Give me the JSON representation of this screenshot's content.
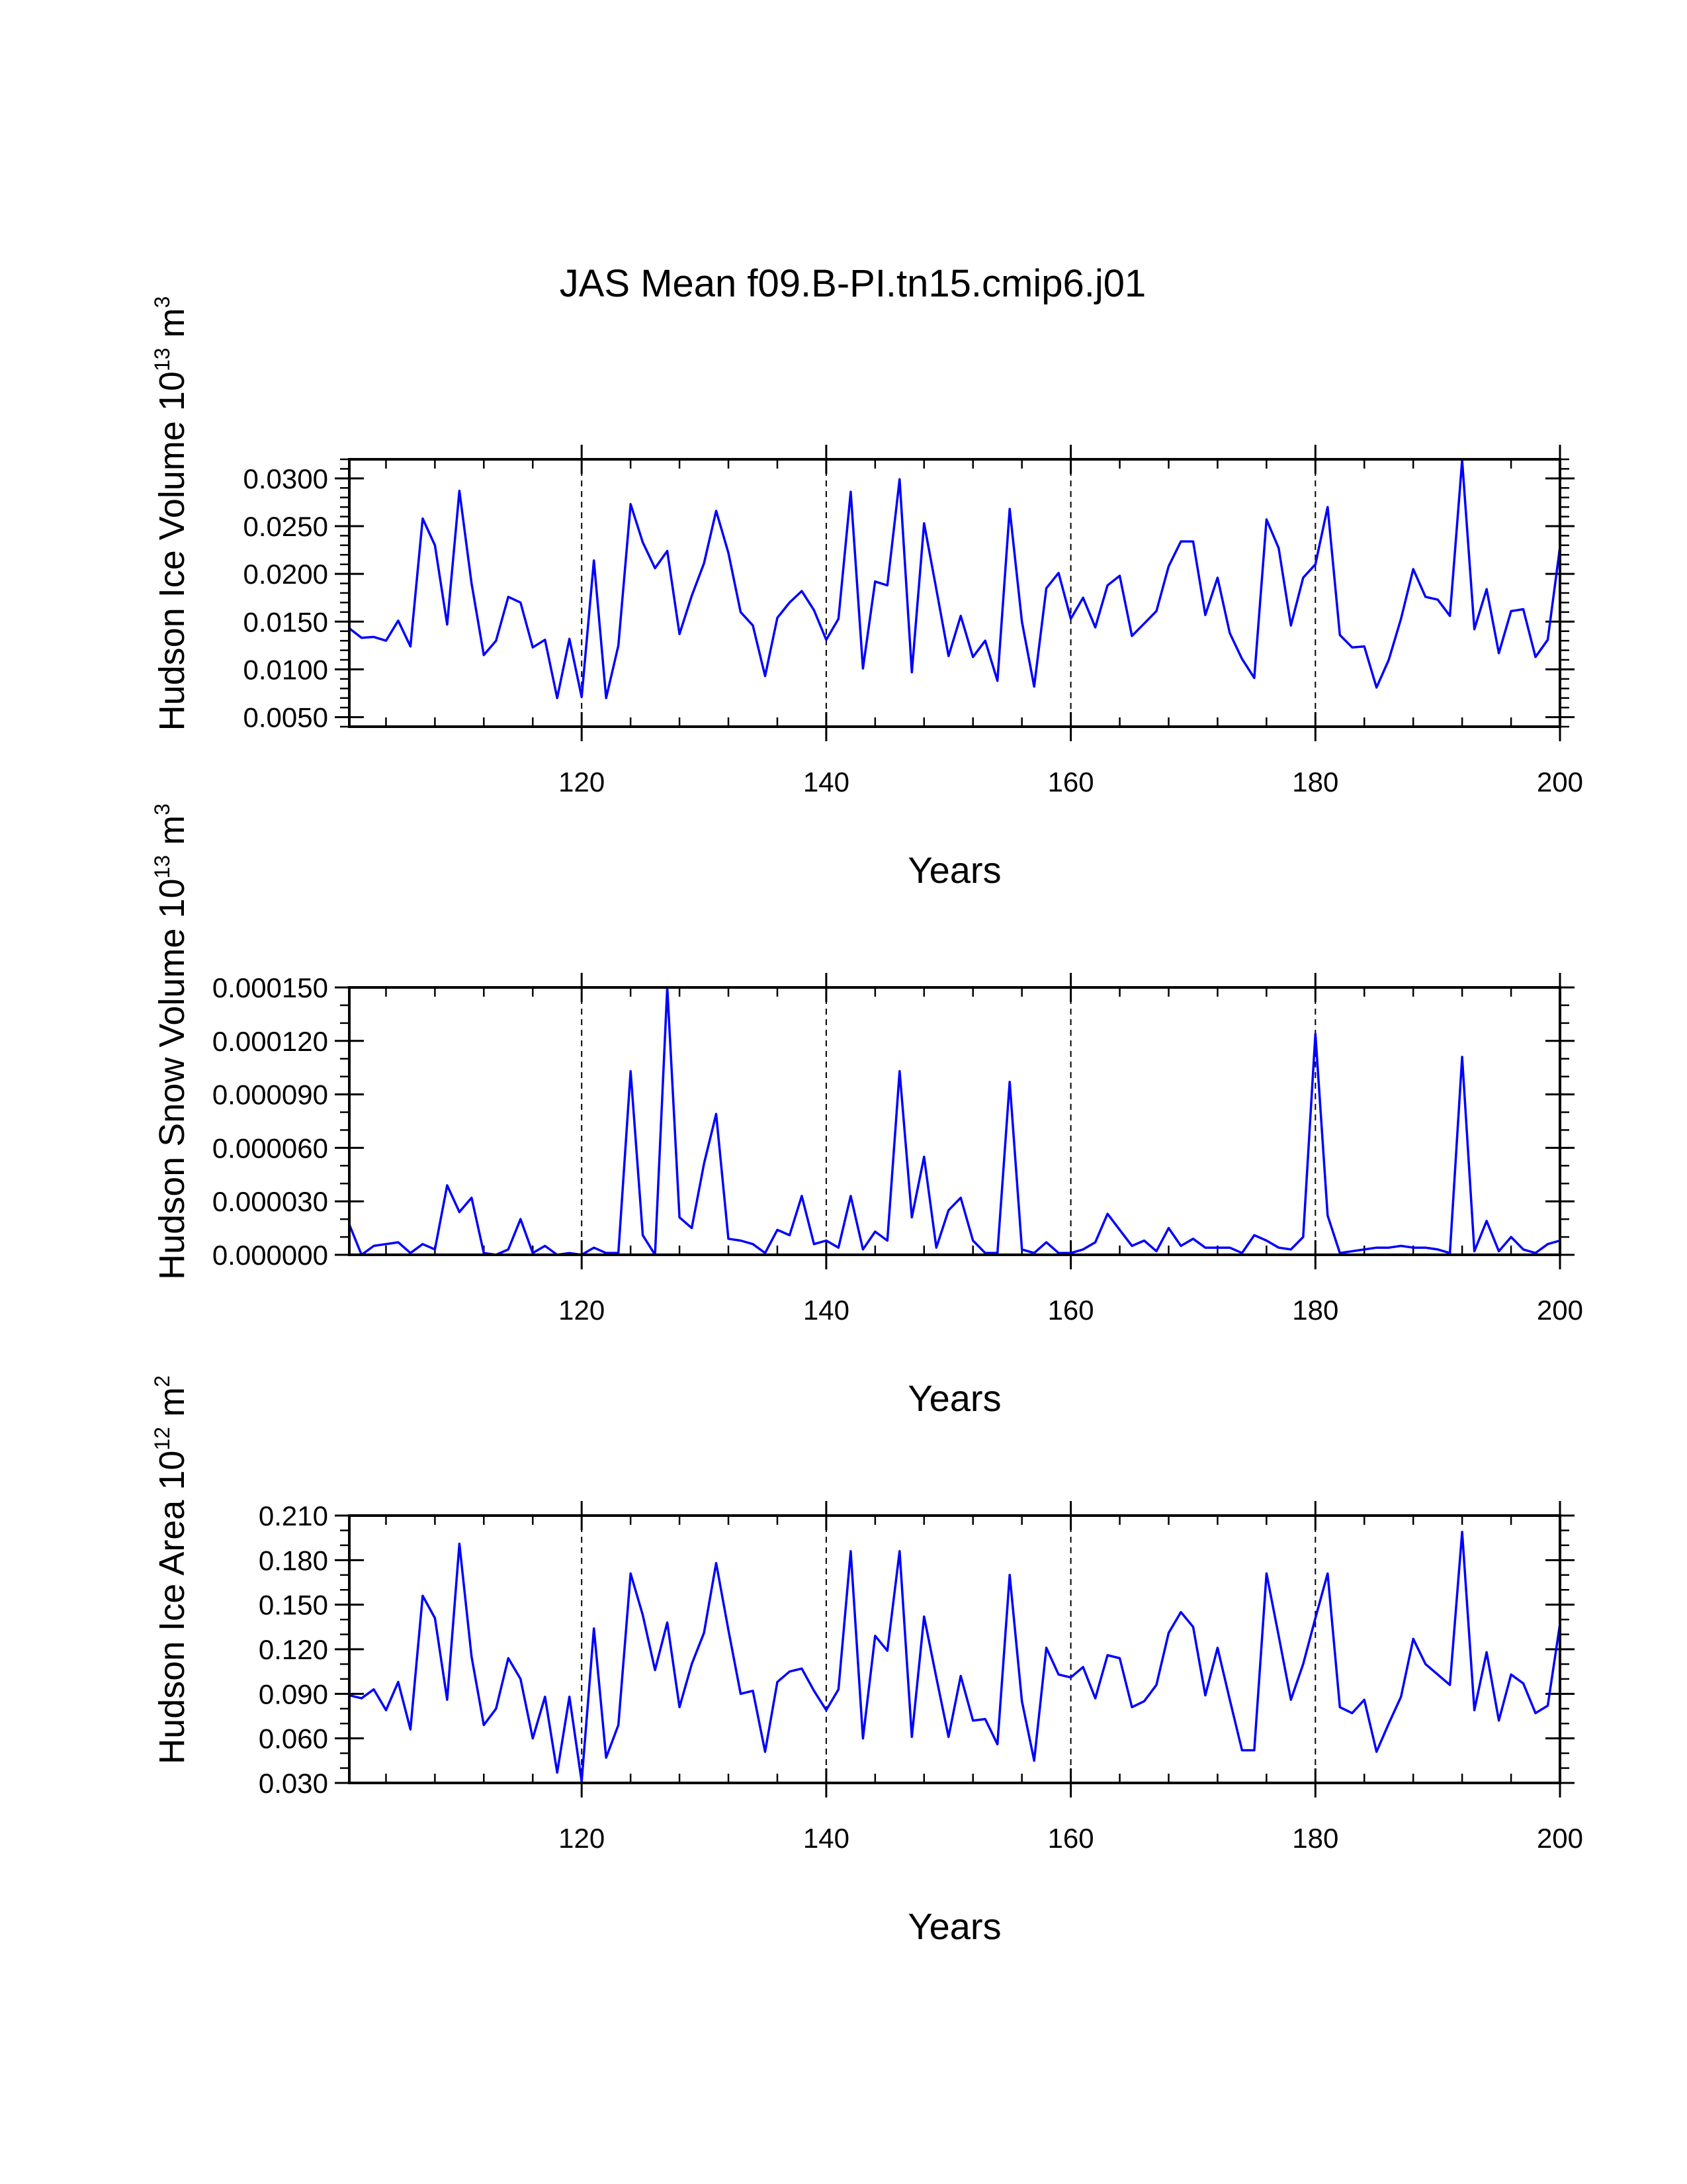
{
  "figure": {
    "title": "JAS Mean f09.B-PI.tn15.cmip6.j01"
  },
  "colors": {
    "series": "#0000ff",
    "axes": "#000000"
  },
  "chart_data": [
    {
      "type": "line",
      "ylabel": {
        "main": "Hudson Ice Volume 10",
        "exp": "13",
        "unit": " m",
        "unit_exp": "3"
      },
      "xlabel": "Years",
      "xlim": [
        101,
        200
      ],
      "ylim": [
        0.004,
        0.032
      ],
      "x_ticks": [
        120,
        140,
        160,
        180,
        200
      ],
      "x_tick_labels": [
        "120",
        "140",
        "160",
        "180",
        "200"
      ],
      "y_ticks": [
        0.005,
        0.01,
        0.015,
        0.02,
        0.025,
        0.03
      ],
      "y_tick_labels": [
        "0.0050",
        "0.0100",
        "0.0150",
        "0.0200",
        "0.0250",
        "0.0300"
      ],
      "y_minor_step": 0.001,
      "vlines": [
        120,
        140,
        160,
        180
      ],
      "series": [
        {
          "name": "Hudson Ice Volume",
          "x_start": 101,
          "values": [
            0.0143,
            0.0133,
            0.0134,
            0.013,
            0.0151,
            0.0124,
            0.0258,
            0.023,
            0.0147,
            0.0287,
            0.019,
            0.0115,
            0.013,
            0.0176,
            0.017,
            0.0123,
            0.0131,
            0.007,
            0.0132,
            0.0071,
            0.0214,
            0.007,
            0.0125,
            0.0273,
            0.0233,
            0.0206,
            0.0224,
            0.0137,
            0.0177,
            0.0211,
            0.0266,
            0.0222,
            0.016,
            0.0146,
            0.0093,
            0.0154,
            0.017,
            0.0182,
            0.0162,
            0.0131,
            0.0153,
            0.0286,
            0.0101,
            0.0192,
            0.0188,
            0.0299,
            0.0097,
            0.0253,
            0.0184,
            0.0114,
            0.0156,
            0.0113,
            0.013,
            0.0088,
            0.0268,
            0.015,
            0.0082,
            0.0185,
            0.0201,
            0.0153,
            0.0175,
            0.0144,
            0.0188,
            0.0198,
            0.0135,
            0.0148,
            0.0161,
            0.0208,
            0.0234,
            0.0234,
            0.0157,
            0.0196,
            0.0138,
            0.0111,
            0.0091,
            0.0257,
            0.0227,
            0.0146,
            0.0196,
            0.021,
            0.027,
            0.0136,
            0.0123,
            0.0124,
            0.0081,
            0.011,
            0.0153,
            0.0205,
            0.0176,
            0.0173,
            0.0156,
            0.0319,
            0.0142,
            0.0184,
            0.0117,
            0.0161,
            0.0163,
            0.0113,
            0.0131,
            0.0228
          ]
        }
      ]
    },
    {
      "type": "line",
      "ylabel": {
        "main": "Hudson Snow Volume 10",
        "exp": "13",
        "unit": " m",
        "unit_exp": "3"
      },
      "xlabel": "Years",
      "xlim": [
        101,
        200
      ],
      "ylim": [
        0.0,
        0.00015
      ],
      "x_ticks": [
        120,
        140,
        160,
        180,
        200
      ],
      "x_tick_labels": [
        "120",
        "140",
        "160",
        "180",
        "200"
      ],
      "y_ticks": [
        0.0,
        3e-05,
        6e-05,
        9e-05,
        0.00012,
        0.00015
      ],
      "y_tick_labels": [
        "0.000000",
        "0.000030",
        "0.000060",
        "0.000090",
        "0.000120",
        "0.000150"
      ],
      "y_minor_step": 1e-05,
      "vlines": [
        120,
        140,
        160,
        180
      ],
      "series": [
        {
          "name": "Hudson Snow Volume",
          "x_start": 101,
          "values": [
            1.7e-05,
            0.0,
            5e-06,
            6e-06,
            7e-06,
            1e-06,
            6e-06,
            3e-06,
            3.9e-05,
            2.4e-05,
            3.2e-05,
            1e-06,
            0.0,
            3e-06,
            2e-05,
            1e-06,
            5e-06,
            0.0,
            1e-06,
            0.0,
            4e-06,
            1e-06,
            1e-06,
            0.000103,
            1.1e-05,
            0.0,
            0.00015,
            2.1e-05,
            1.5e-05,
            5.1e-05,
            7.9e-05,
            9e-06,
            8e-06,
            6e-06,
            1e-06,
            1.4e-05,
            1.1e-05,
            3.3e-05,
            6e-06,
            8e-06,
            4e-06,
            3.3e-05,
            3e-06,
            1.3e-05,
            8e-06,
            0.000103,
            2.1e-05,
            5.5e-05,
            4e-06,
            2.5e-05,
            3.2e-05,
            8e-06,
            1e-06,
            1e-06,
            9.7e-05,
            3e-06,
            1e-06,
            7e-06,
            1e-06,
            1e-06,
            3e-06,
            7e-06,
            2.3e-05,
            1.4e-05,
            5e-06,
            8e-06,
            2e-06,
            1.5e-05,
            5e-06,
            9e-06,
            4e-06,
            4e-06,
            4e-06,
            1e-06,
            1.1e-05,
            8e-06,
            4e-06,
            3e-06,
            1e-05,
            0.000124,
            2.2e-05,
            1e-06,
            2e-06,
            3e-06,
            4e-06,
            4e-06,
            5e-06,
            4e-06,
            4e-06,
            3e-06,
            1e-06,
            0.000111,
            2e-06,
            1.9e-05,
            2e-06,
            1e-05,
            3e-06,
            1e-06,
            6e-06,
            8e-06
          ]
        }
      ]
    },
    {
      "type": "line",
      "ylabel": {
        "main": "Hudson Ice Area 10",
        "exp": "12",
        "unit": " m",
        "unit_exp": "2"
      },
      "xlabel": "Years",
      "xlim": [
        101,
        200
      ],
      "ylim": [
        0.03,
        0.21
      ],
      "x_ticks": [
        120,
        140,
        160,
        180,
        200
      ],
      "x_tick_labels": [
        "120",
        "140",
        "160",
        "180",
        "200"
      ],
      "y_ticks": [
        0.03,
        0.06,
        0.09,
        0.12,
        0.15,
        0.18,
        0.21
      ],
      "y_tick_labels": [
        "0.030",
        "0.060",
        "0.090",
        "0.120",
        "0.150",
        "0.180",
        "0.210"
      ],
      "y_minor_step": 0.01,
      "vlines": [
        120,
        140,
        160,
        180
      ],
      "series": [
        {
          "name": "Hudson Ice Area",
          "x_start": 101,
          "values": [
            0.089,
            0.087,
            0.093,
            0.079,
            0.098,
            0.066,
            0.156,
            0.141,
            0.086,
            0.191,
            0.115,
            0.069,
            0.08,
            0.114,
            0.1,
            0.06,
            0.088,
            0.037,
            0.088,
            0.031,
            0.134,
            0.047,
            0.069,
            0.171,
            0.143,
            0.106,
            0.138,
            0.081,
            0.11,
            0.131,
            0.178,
            0.133,
            0.09,
            0.092,
            0.051,
            0.098,
            0.105,
            0.107,
            0.092,
            0.079,
            0.093,
            0.186,
            0.06,
            0.129,
            0.119,
            0.186,
            0.061,
            0.142,
            0.101,
            0.061,
            0.102,
            0.072,
            0.073,
            0.056,
            0.17,
            0.085,
            0.045,
            0.121,
            0.103,
            0.101,
            0.108,
            0.087,
            0.116,
            0.114,
            0.081,
            0.085,
            0.096,
            0.131,
            0.145,
            0.135,
            0.089,
            0.121,
            0.086,
            0.052,
            0.052,
            0.171,
            0.129,
            0.086,
            0.11,
            0.141,
            0.171,
            0.081,
            0.077,
            0.086,
            0.051,
            0.07,
            0.088,
            0.127,
            0.11,
            0.103,
            0.096,
            0.199,
            0.079,
            0.118,
            0.072,
            0.103,
            0.097,
            0.077,
            0.082,
            0.137
          ]
        }
      ]
    }
  ]
}
